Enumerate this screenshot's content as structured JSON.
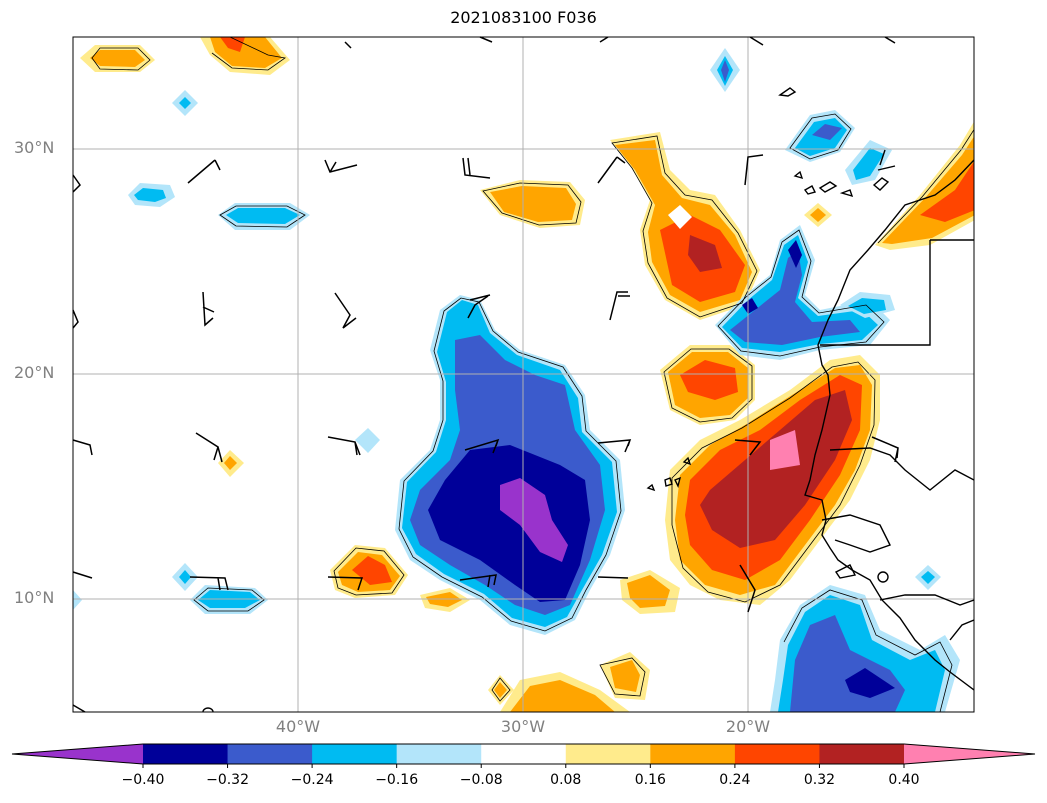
{
  "title": "2021083100 F036",
  "lat_labels": [
    "30°N",
    "20°N",
    "10°N"
  ],
  "lon_labels": [
    "40°W",
    "30°W",
    "20°W"
  ],
  "colorbar": {
    "colors": [
      "#9933cc",
      "#000099",
      "#3b5bcc",
      "#00bbf2",
      "#b3e5fa",
      "#ffffff",
      "#ffeb8c",
      "#ffa500",
      "#ff4500",
      "#b22222",
      "#ff80b0"
    ],
    "ticks": [
      "−0.40",
      "−0.32",
      "−0.24",
      "−0.16",
      "−0.08",
      "0.08",
      "0.16",
      "0.24",
      "0.32",
      "0.40"
    ]
  },
  "colors": {
    "grid": "#b0b0b0",
    "frame": "#000000"
  }
}
